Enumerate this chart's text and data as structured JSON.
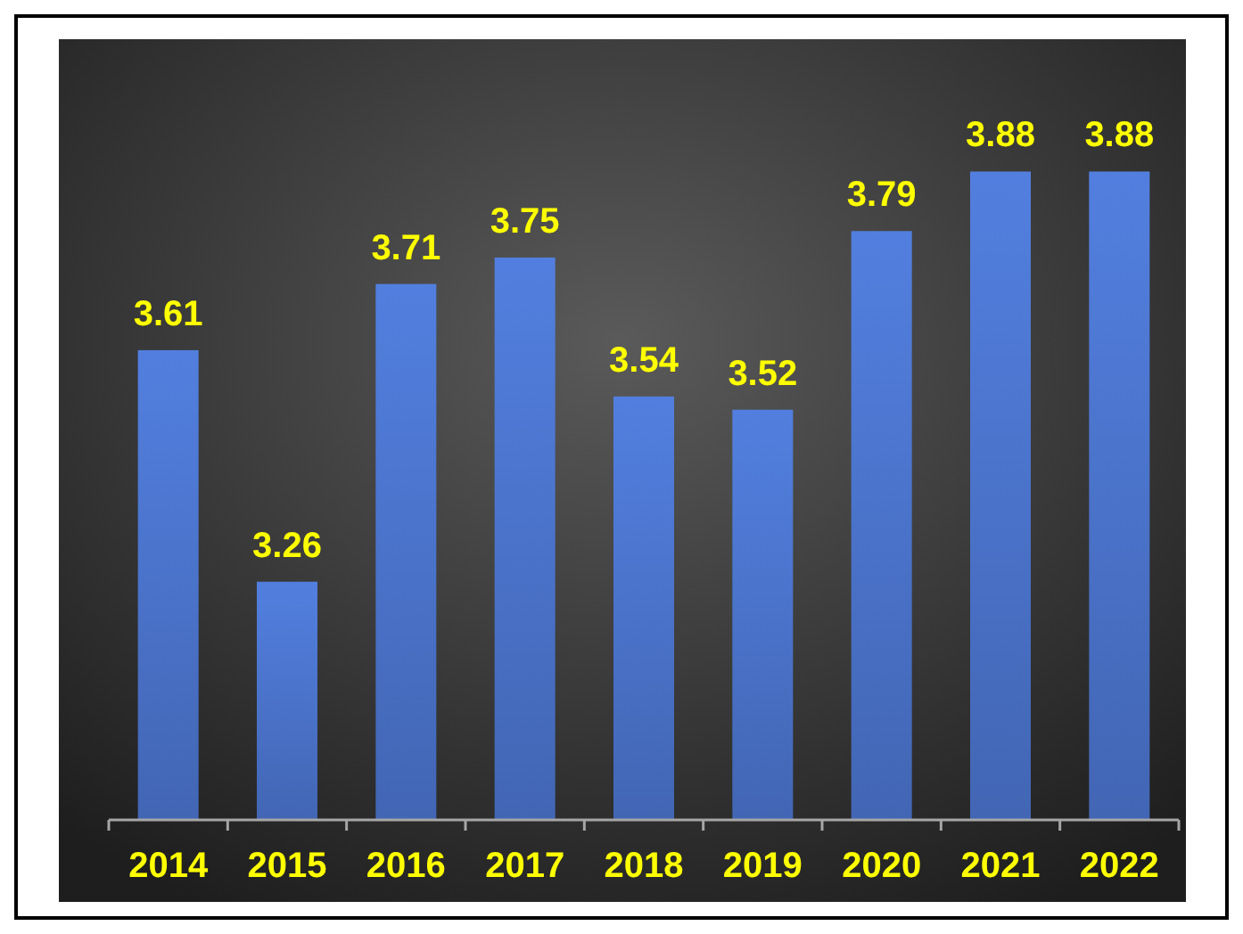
{
  "chart_data": {
    "type": "bar",
    "categories": [
      "2014",
      "2015",
      "2016",
      "2017",
      "2018",
      "2019",
      "2020",
      "2021",
      "2022"
    ],
    "values": [
      3.61,
      3.26,
      3.71,
      3.75,
      3.54,
      3.52,
      3.79,
      3.88,
      3.88
    ],
    "color": "#4a72c8",
    "ylim": [
      2.9,
      4.08
    ],
    "tick_labels": "x",
    "data_labels": true
  }
}
